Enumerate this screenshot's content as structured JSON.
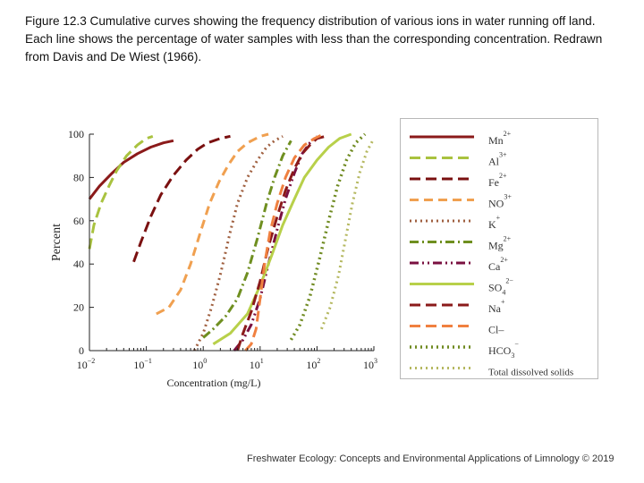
{
  "caption": "Figure 12.3 Cumulative curves showing the frequency distribution of various ions in water running off land. Each line shows the percentage of water samples with less than the corresponding concentration. Redrawn from Davis and De Wiest (1966).",
  "footer": "Freshwater Ecology: Concepts and Environmental Applications of Limnology © 2019",
  "chart_data": {
    "type": "line",
    "title": "",
    "xlabel": "Concentration (mg/L)",
    "ylabel": "Percent",
    "xscale": "log",
    "xlim": [
      0.01,
      1000
    ],
    "ylim": [
      0,
      100
    ],
    "xticks": [
      {
        "value": 0.01,
        "base": "10",
        "exp": "−2"
      },
      {
        "value": 0.1,
        "base": "10",
        "exp": "−1"
      },
      {
        "value": 1,
        "base": "10",
        "exp": "0"
      },
      {
        "value": 10,
        "base": "10",
        "exp": "1"
      },
      {
        "value": 100,
        "base": "10",
        "exp": "2"
      },
      {
        "value": 1000,
        "base": "10",
        "exp": "3"
      }
    ],
    "yticks": [
      0,
      20,
      40,
      60,
      80,
      100
    ],
    "grid": false,
    "legend_position": "right",
    "series": [
      {
        "name": "Mn",
        "sup": "2+",
        "sub": "",
        "color": "#8b1a1a",
        "dash": "",
        "width": 3,
        "x": [
          0.01,
          0.015,
          0.025,
          0.04,
          0.07,
          0.12,
          0.2,
          0.3
        ],
        "y": [
          70,
          76,
          82,
          87,
          91,
          94,
          96,
          97
        ]
      },
      {
        "name": "Al",
        "sup": "3+",
        "sub": "",
        "color": "#a9c23f",
        "dash": "12,6",
        "width": 3,
        "x": [
          0.01,
          0.012,
          0.016,
          0.022,
          0.03,
          0.045,
          0.07,
          0.1,
          0.13
        ],
        "y": [
          47,
          58,
          68,
          76,
          83,
          90,
          95,
          98,
          99
        ]
      },
      {
        "name": "Fe",
        "sup": "2+",
        "sub": "",
        "color": "#7a1010",
        "dash": "12,6",
        "width": 3,
        "x": [
          0.06,
          0.08,
          0.12,
          0.18,
          0.3,
          0.5,
          0.8,
          1.2,
          2,
          3
        ],
        "y": [
          41,
          50,
          62,
          72,
          81,
          88,
          93,
          96,
          98,
          99
        ]
      },
      {
        "name": "NO",
        "sup": "3+",
        "sub": "",
        "color": "#f0a050",
        "dash": "10,6",
        "width": 3,
        "x": [
          0.15,
          0.25,
          0.4,
          0.6,
          0.9,
          1.3,
          1.9,
          2.8,
          4,
          6,
          10,
          14
        ],
        "y": [
          17,
          20,
          28,
          40,
          55,
          68,
          78,
          86,
          92,
          96,
          99,
          100
        ]
      },
      {
        "name": "K",
        "sup": "+",
        "sub": "",
        "color": "#a06040",
        "dash": "2,4",
        "width": 3,
        "x": [
          0.7,
          1,
          1.4,
          2,
          3,
          4,
          6,
          9,
          13,
          18,
          25
        ],
        "y": [
          0,
          8,
          20,
          35,
          55,
          68,
          80,
          88,
          94,
          97,
          99
        ]
      },
      {
        "name": "Mg",
        "sup": "2+",
        "sub": "",
        "color": "#6f8f20",
        "dash": "10,4,2,4",
        "width": 3,
        "x": [
          1,
          1.5,
          2.5,
          4,
          6,
          9,
          13,
          18,
          25,
          35
        ],
        "y": [
          6,
          10,
          16,
          24,
          36,
          52,
          68,
          80,
          90,
          97
        ]
      },
      {
        "name": "Ca",
        "sup": "2+",
        "sub": "",
        "color": "#7a1040",
        "dash": "10,4,2,4,2,4",
        "width": 3,
        "x": [
          3.5,
          5,
          7,
          10,
          14,
          20,
          28,
          40,
          55,
          75,
          100
        ],
        "y": [
          0,
          5,
          12,
          24,
          40,
          56,
          70,
          82,
          91,
          96,
          99
        ]
      },
      {
        "name": "SO",
        "sup": "2−",
        "sub": "4",
        "color": "#b8d04a",
        "dash": "",
        "width": 3,
        "x": [
          1.5,
          3,
          6,
          10,
          16,
          25,
          40,
          60,
          100,
          160,
          250,
          400
        ],
        "y": [
          3,
          8,
          17,
          30,
          44,
          58,
          70,
          80,
          88,
          94,
          98,
          100
        ]
      },
      {
        "name": "Na",
        "sup": "+",
        "sub": "",
        "color": "#8b1a1a",
        "dash": "12,6",
        "width": 3,
        "x": [
          4,
          5,
          7,
          10,
          14,
          20,
          28,
          40,
          55,
          75,
          100,
          140
        ],
        "y": [
          0,
          8,
          18,
          32,
          48,
          62,
          74,
          84,
          91,
          95,
          98,
          99
        ]
      },
      {
        "name": "Cl–",
        "sup": "",
        "sub": "",
        "color": "#f08040",
        "dash": "12,6",
        "width": 3,
        "x": [
          5.5,
          7,
          8.5,
          10,
          12,
          15,
          20,
          28,
          40,
          60,
          90,
          130
        ],
        "y": [
          0,
          3,
          10,
          24,
          40,
          55,
          68,
          80,
          89,
          95,
          98,
          100
        ]
      },
      {
        "name": "HCO",
        "sup": "−",
        "sub": "3",
        "color": "#6f8a20",
        "dash": "2,4",
        "width": 3.5,
        "x": [
          35,
          50,
          75,
          110,
          160,
          230,
          330,
          480,
          700
        ],
        "y": [
          5,
          12,
          25,
          42,
          60,
          76,
          88,
          96,
          100
        ]
      },
      {
        "name": "Total dissolved solids",
        "sup": "",
        "sub": "",
        "color": "#b5b860",
        "dash": "2,4",
        "width": 3,
        "x": [
          120,
          170,
          240,
          320,
          420,
          560,
          750,
          1000
        ],
        "y": [
          10,
          20,
          35,
          52,
          68,
          82,
          92,
          98
        ]
      }
    ]
  }
}
